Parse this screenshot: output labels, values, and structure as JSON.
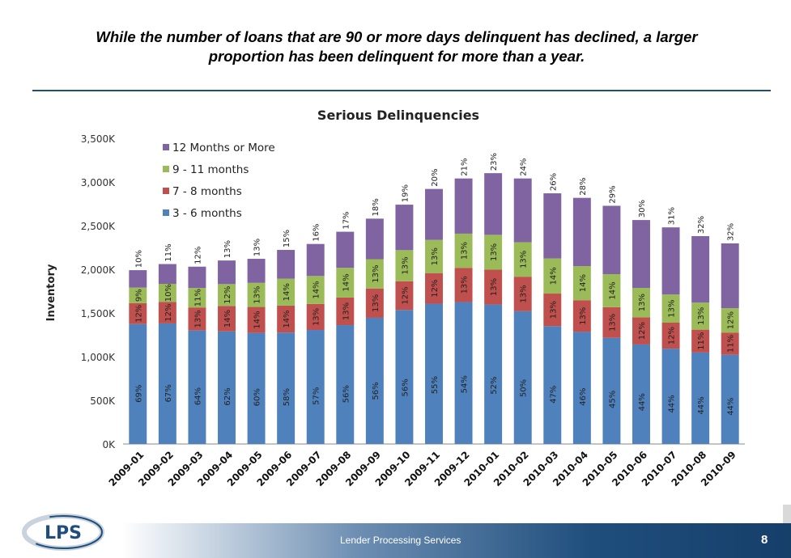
{
  "headline": {
    "line1": "While the number of loans that are 90 or more days delinquent has declined, a larger",
    "line2": "proportion has been delinquent for more than a year."
  },
  "footer": {
    "company": "Lender Processing Services",
    "page_number": "8",
    "logo_text": "LPS"
  },
  "colors": {
    "s3_6": "#4f81bd",
    "s7_8": "#c0504d",
    "s9_11": "#9bbb59",
    "s12plus": "#8064a2",
    "rule": "#1f4e79",
    "footer_dark": "#1f4e7d"
  },
  "chart_data": {
    "type": "bar",
    "stacked": true,
    "title": "Serious Delinquencies",
    "ylabel": "Inventory",
    "xlabel": "",
    "ylim": [
      0,
      3500
    ],
    "yticks": [
      "0K",
      "500K",
      "1,000K",
      "1,500K",
      "2,000K",
      "2,500K",
      "3,000K",
      "3,500K"
    ],
    "legend_position": "top-left",
    "categories": [
      "2009-01",
      "2009-02",
      "2009-03",
      "2009-04",
      "2009-05",
      "2009-06",
      "2009-07",
      "2009-08",
      "2009-09",
      "2009-10",
      "2009-11",
      "2009-12",
      "2010-01",
      "2010-02",
      "2010-03",
      "2010-04",
      "2010-05",
      "2010-06",
      "2010-07",
      "2010-08",
      "2010-09"
    ],
    "totals": [
      1990,
      2060,
      2030,
      2080,
      2120,
      2200,
      2290,
      2430,
      2580,
      2740,
      2920,
      3010,
      3070,
      3040,
      2870,
      2790,
      2700,
      2590,
      2480,
      2380,
      2320
    ],
    "series": [
      {
        "name": "3 - 6 months",
        "color": "#4f81bd",
        "labels": [
          "69%",
          "67%",
          "64%",
          "62%",
          "60%",
          "58%",
          "57%",
          "56%",
          "56%",
          "56%",
          "55%",
          "54%",
          "52%",
          "50%",
          "47%",
          "46%",
          "45%",
          "44%",
          "44%",
          "44%",
          "44%"
        ],
        "pct": [
          69,
          67,
          64,
          62,
          60,
          58,
          57,
          56,
          56,
          56,
          55,
          54,
          52,
          50,
          47,
          46,
          45,
          44,
          44,
          44,
          44
        ]
      },
      {
        "name": "7 - 8 months",
        "color": "#c0504d",
        "labels": [
          "12%",
          "12%",
          "13%",
          "14%",
          "14%",
          "14%",
          "13%",
          "13%",
          "13%",
          "12%",
          "12%",
          "13%",
          "13%",
          "13%",
          "13%",
          "13%",
          "13%",
          "12%",
          "12%",
          "11%",
          "11%"
        ],
        "pct": [
          12,
          12,
          13,
          14,
          14,
          14,
          13,
          13,
          13,
          12,
          12,
          13,
          13,
          13,
          13,
          13,
          13,
          12,
          12,
          11,
          11
        ]
      },
      {
        "name": "9 - 11 months",
        "color": "#9bbb59",
        "labels": [
          "9%",
          "10%",
          "11%",
          "12%",
          "13%",
          "14%",
          "14%",
          "14%",
          "13%",
          "13%",
          "13%",
          "13%",
          "13%",
          "13%",
          "14%",
          "14%",
          "14%",
          "13%",
          "13%",
          "13%",
          "12%"
        ],
        "pct": [
          9,
          10,
          11,
          12,
          13,
          14,
          14,
          14,
          13,
          13,
          13,
          13,
          13,
          13,
          14,
          14,
          14,
          13,
          13,
          13,
          12
        ]
      },
      {
        "name": "12 Months or More",
        "color": "#8064a2",
        "labels": [
          "10%",
          "11%",
          "12%",
          "13%",
          "13%",
          "15%",
          "16%",
          "17%",
          "18%",
          "19%",
          "20%",
          "21%",
          "23%",
          "24%",
          "26%",
          "28%",
          "29%",
          "30%",
          "31%",
          "32%",
          "32%"
        ],
        "pct": [
          10,
          11,
          12,
          13,
          13,
          15,
          16,
          17,
          18,
          19,
          20,
          21,
          23,
          24,
          26,
          28,
          29,
          30,
          31,
          32,
          32
        ]
      }
    ],
    "legend_order": [
      "12 Months or More",
      "9 - 11 months",
      "7 - 8 months",
      "3 - 6 months"
    ]
  }
}
